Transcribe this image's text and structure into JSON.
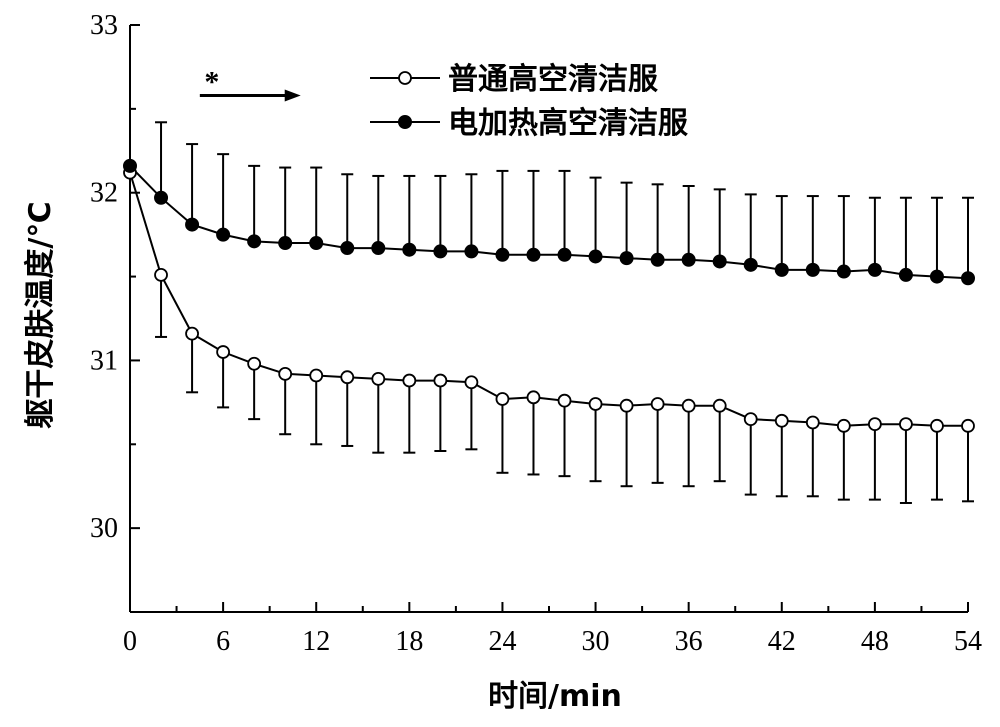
{
  "chart_data": {
    "type": "line",
    "title": "",
    "xlabel": "时间/min",
    "ylabel": "躯干皮肤温度/℃",
    "xlim": [
      0,
      54
    ],
    "ylim": [
      29.5,
      33
    ],
    "xticks": [
      0,
      6,
      12,
      18,
      24,
      30,
      36,
      42,
      48,
      54
    ],
    "yticks": [
      30,
      31,
      32,
      33
    ],
    "grid": false,
    "legend_position": "top-right",
    "annotation": {
      "text": "*",
      "x_start": 4.5,
      "x_end": 11,
      "y": 32.58
    },
    "x": [
      0,
      2,
      4,
      6,
      8,
      10,
      12,
      14,
      16,
      18,
      20,
      22,
      24,
      26,
      28,
      30,
      32,
      34,
      36,
      38,
      40,
      42,
      44,
      46,
      48,
      50,
      52,
      54
    ],
    "series": [
      {
        "name": "普通高空清洁服",
        "marker": "open-circle",
        "color": "#000000",
        "values": [
          32.12,
          31.51,
          31.16,
          31.05,
          30.98,
          30.92,
          30.91,
          30.9,
          30.89,
          30.88,
          30.88,
          30.87,
          30.77,
          30.78,
          30.76,
          30.74,
          30.73,
          30.74,
          30.73,
          30.73,
          30.65,
          30.64,
          30.63,
          30.61,
          30.62,
          30.62,
          30.61,
          30.61
        ],
        "error_lower": [
          32.12,
          31.14,
          30.81,
          30.72,
          30.65,
          30.56,
          30.5,
          30.49,
          30.45,
          30.45,
          30.46,
          30.47,
          30.33,
          30.32,
          30.31,
          30.28,
          30.25,
          30.27,
          30.25,
          30.28,
          30.2,
          30.19,
          30.19,
          30.17,
          30.17,
          30.15,
          30.17,
          30.16
        ]
      },
      {
        "name": "电加热高空清洁服",
        "marker": "filled-circle",
        "color": "#000000",
        "values": [
          32.16,
          31.97,
          31.81,
          31.75,
          31.71,
          31.7,
          31.7,
          31.67,
          31.67,
          31.66,
          31.65,
          31.65,
          31.63,
          31.63,
          31.63,
          31.62,
          31.61,
          31.6,
          31.6,
          31.59,
          31.57,
          31.54,
          31.54,
          31.53,
          31.54,
          31.51,
          31.5,
          31.49
        ],
        "error_upper": [
          32.16,
          32.42,
          32.29,
          32.23,
          32.16,
          32.15,
          32.15,
          32.11,
          32.1,
          32.1,
          32.1,
          32.11,
          32.13,
          32.13,
          32.13,
          32.09,
          32.06,
          32.05,
          32.04,
          32.02,
          31.99,
          31.98,
          31.98,
          31.98,
          31.97,
          31.97,
          31.97,
          31.97
        ]
      }
    ]
  }
}
